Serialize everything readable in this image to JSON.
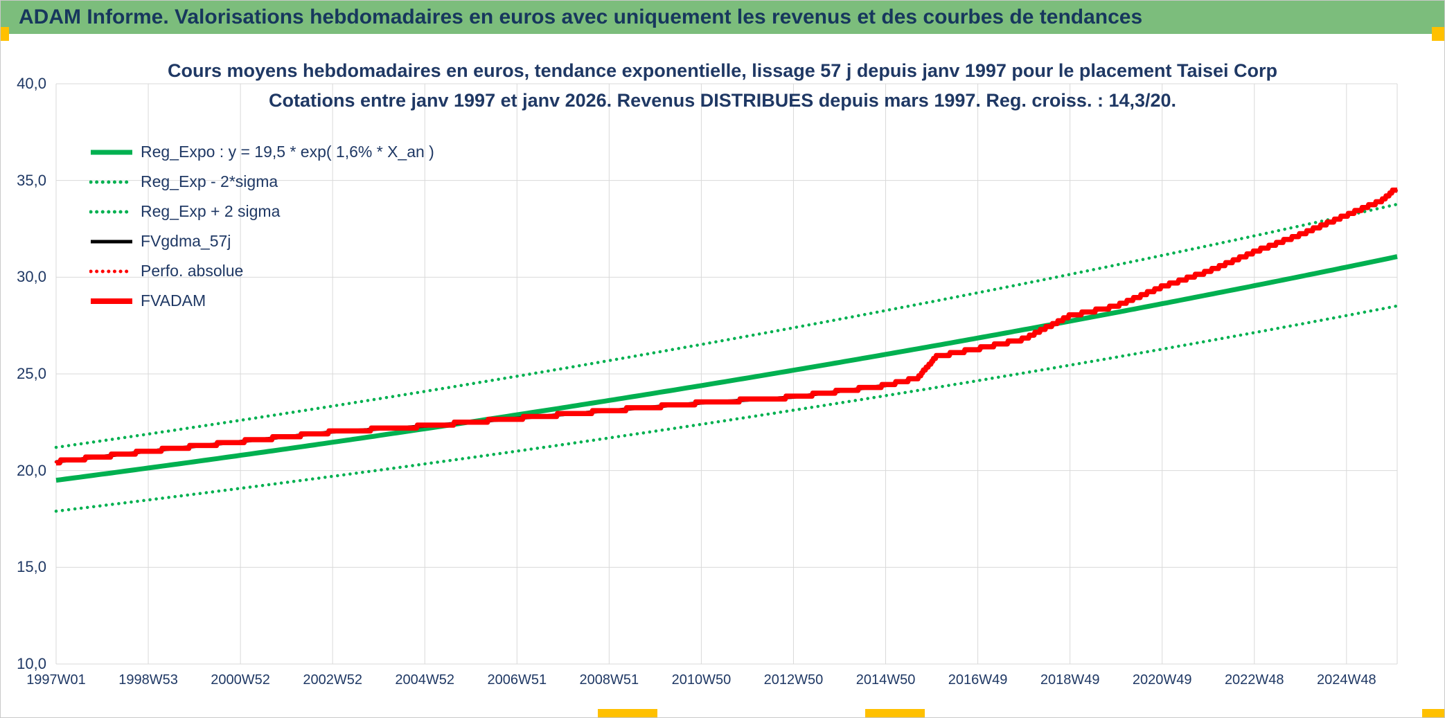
{
  "header": {
    "title": "ADAM Informe. Valorisations hebdomadaires en euros avec uniquement les revenus et des courbes de tendances",
    "bg_color": "#7CBD7C",
    "text_color": "#17375D"
  },
  "chart": {
    "title_line1": "Cours moyens hebdomadaires en euros, tendance exponentielle, lissage 57 j depuis janv 1997 pour le placement Taisei Corp",
    "title_line2": "Cotations entre janv 1997 et janv 2026. Revenus DISTRIBUES depuis mars 1997. Reg. croiss. : 14,3/20.",
    "text_color": "#1F3864",
    "grid_color": "#D9D9D9"
  },
  "colors": {
    "green": "#00B050",
    "red": "#FF0000",
    "black": "#000000",
    "handle": "#FFC000"
  },
  "legend": {
    "items": [
      {
        "label": "Reg_Expo : y = 19,5 * exp( 1,6% *  X_an )",
        "color": "#00B050",
        "style": "solid",
        "weight": 7
      },
      {
        "label": "Reg_Exp - 2*sigma",
        "color": "#00B050",
        "style": "dotted",
        "weight": 5
      },
      {
        "label": "Reg_Exp + 2 sigma",
        "color": "#00B050",
        "style": "dotted",
        "weight": 5
      },
      {
        "label": "FVgdma_57j",
        "color": "#000000",
        "style": "solid",
        "weight": 5
      },
      {
        "label": "Perfo. absolue",
        "color": "#FF0000",
        "style": "dotted",
        "weight": 5
      },
      {
        "label": "FVADAM",
        "color": "#FF0000",
        "style": "solid",
        "weight": 8
      }
    ]
  },
  "axes": {
    "y_ticks": [
      "40,0",
      "35,0",
      "30,0",
      "25,0",
      "20,0",
      "15,0",
      "10,0"
    ],
    "x_ticks": [
      "1997W01",
      "1998W53",
      "2000W52",
      "2002W52",
      "2004W52",
      "2006W51",
      "2008W51",
      "2010W50",
      "2012W50",
      "2014W50",
      "2016W49",
      "2018W49",
      "2020W49",
      "2022W48",
      "2024W48"
    ]
  },
  "chart_data": {
    "type": "line",
    "title": "Cours moyens hebdomadaires en euros, tendance exponentielle, lissage 57 j depuis janv 1997 pour le placement Taisei Corp — Cotations entre janv 1997 et janv 2026. Revenus DISTRIBUES depuis mars 1997. Reg. croiss. : 14,3/20.",
    "x_ticks": [
      "1997W01",
      "1998W53",
      "2000W52",
      "2002W52",
      "2004W52",
      "2006W51",
      "2008W51",
      "2010W50",
      "2012W50",
      "2014W50",
      "2016W49",
      "2018W49",
      "2020W49",
      "2022W48",
      "2024W48"
    ],
    "x_tick_interval_years": 2,
    "x_unit": "years_since_janv_1997",
    "x_range": [
      0,
      29.1
    ],
    "ylim": [
      10,
      40
    ],
    "y_tick_step": 5,
    "grid": true,
    "legend_position": "top-left-inside",
    "shared_valuation_points": {
      "t": [
        0,
        2,
        4,
        6,
        8,
        10,
        12,
        14,
        16,
        18,
        18.7,
        19.1,
        20,
        21,
        22,
        23,
        24,
        25,
        26,
        27,
        28,
        28.8,
        29.0,
        29.1
      ],
      "v": [
        20.45,
        21.0,
        21.5,
        22.0,
        22.3,
        22.7,
        23.1,
        23.5,
        23.8,
        24.4,
        24.8,
        25.9,
        26.3,
        26.8,
        28.0,
        28.5,
        29.5,
        30.3,
        31.3,
        32.2,
        33.2,
        34.0,
        34.45,
        34.5
      ]
    },
    "series": [
      {
        "name": "Reg_Expo : y = 19,5 * exp( 1,6% *  X_an )",
        "model": "exp",
        "base": 19.5,
        "rate": 0.016,
        "color": "#00B050",
        "style": "solid",
        "width": 7,
        "values_sampled": {
          "t": [
            0,
            5,
            10,
            15,
            20,
            25,
            29
          ],
          "v": [
            19.5,
            21.1,
            22.9,
            24.8,
            26.9,
            29.1,
            31.0
          ]
        }
      },
      {
        "name": "Reg_Exp - 2*sigma",
        "model": "exp",
        "base": 17.9,
        "rate": 0.016,
        "color": "#00B050",
        "style": "dotted",
        "width": 4.5,
        "values_sampled": {
          "t": [
            0,
            5,
            10,
            15,
            20,
            25,
            29
          ],
          "v": [
            17.9,
            19.4,
            21.0,
            22.8,
            24.7,
            26.7,
            28.5
          ]
        }
      },
      {
        "name": "Reg_Exp + 2 sigma",
        "model": "exp",
        "base": 21.2,
        "rate": 0.016,
        "color": "#00B050",
        "style": "dotted",
        "width": 4.5,
        "values_sampled": {
          "t": [
            0,
            5,
            10,
            15,
            20,
            25,
            29
          ],
          "v": [
            21.2,
            23.0,
            24.9,
            27.0,
            29.2,
            31.6,
            33.7
          ]
        }
      },
      {
        "name": "FVgdma_57j",
        "model": "points",
        "color": "#000000",
        "style": "solid",
        "width": 5
      },
      {
        "name": "Perfo. absolue",
        "model": "points",
        "color": "#FF0000",
        "style": "dotted",
        "width": 4.5
      },
      {
        "name": "FVADAM",
        "model": "points",
        "step_quantize": 0.15,
        "color": "#FF0000",
        "style": "solid",
        "width": 7.5
      }
    ],
    "draw_order": [
      1,
      2,
      0,
      4,
      3,
      5
    ]
  }
}
